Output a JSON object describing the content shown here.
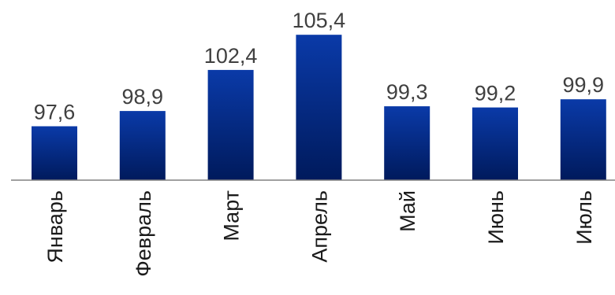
{
  "chart_data": {
    "type": "bar",
    "categories": [
      "Январь",
      "Февраль",
      "Март",
      "Апрель",
      "Май",
      "Июнь",
      "Июль"
    ],
    "values": [
      97.6,
      98.9,
      102.4,
      105.4,
      99.3,
      99.2,
      99.9
    ],
    "data_labels": [
      "97,6",
      "98,9",
      "102,4",
      "105,4",
      "99,3",
      "99,2",
      "99,9"
    ],
    "ylim": [
      93,
      106
    ],
    "grid": false,
    "legend": "none",
    "colors": {
      "bar_top": "#0a3aa8",
      "bar_bottom": "#001a5c",
      "axis": "#808080",
      "label_text": "#404040"
    }
  }
}
